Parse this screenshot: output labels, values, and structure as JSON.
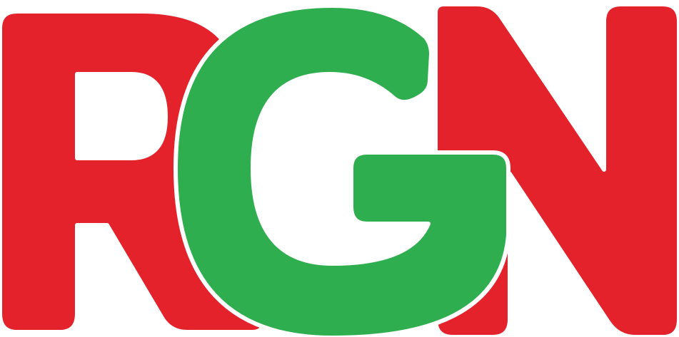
{
  "logo": {
    "text": "RGN",
    "letters": [
      "R",
      "G",
      "N"
    ],
    "colors": {
      "R": "#E3222B",
      "G": "#2EAE4E",
      "N": "#E3222B",
      "outline": "#FFFFFF",
      "background": "#FFFFFF"
    }
  }
}
